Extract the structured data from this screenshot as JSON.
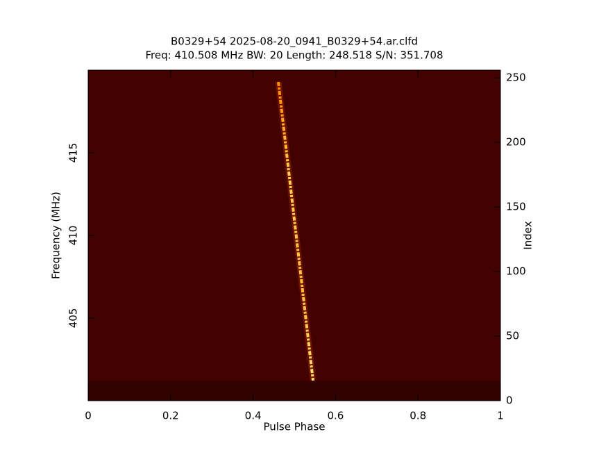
{
  "chart_data": {
    "type": "heatmap",
    "title": "B0329+54 2025-08-20_0941_B0329+54.ar.clfd",
    "subtitle": "Freq: 410.508 MHz BW: 20 Length: 248.518 S/N: 351.708",
    "xlabel": "Pulse Phase",
    "ylabel": "Frequency (MHz)",
    "y2label": "Index",
    "xlim": [
      0,
      1
    ],
    "xticks": [
      0,
      0.2,
      0.4,
      0.6,
      0.8,
      1
    ],
    "ylim": [
      400,
      420
    ],
    "yticks": [
      405,
      410,
      415
    ],
    "y2lim": [
      0,
      256
    ],
    "y2ticks": [
      0,
      50,
      100,
      150,
      200,
      250
    ],
    "color": "#420300"
  }
}
